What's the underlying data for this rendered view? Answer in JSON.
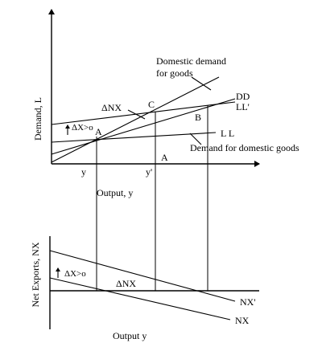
{
  "top": {
    "y_axis_label": "Demand, L",
    "x_axis_label": "Output, y",
    "x_ticks": {
      "y": "y",
      "y_prime": "y'"
    },
    "point_labels": {
      "A_upper": "A",
      "C": "C",
      "B": "B",
      "A_lower": "A"
    },
    "curve_labels": {
      "DD": "DD",
      "LL_prime": "LL'",
      "LL": "L L"
    },
    "annotations": {
      "domestic_demand_line1": "Domestic demand",
      "domestic_demand_line2": "for goods",
      "demand_for_domestic_goods": "Demand for domestic goods",
      "delta_nx": "ΔNX",
      "delta_x": "ΔX>o"
    }
  },
  "bottom": {
    "y_axis_label": "Net Exports, NX",
    "x_axis_label": "Output y",
    "curve_labels": {
      "NX_prime": "NX'",
      "NX": "NX"
    },
    "annotations": {
      "delta_x": "ΔX>o",
      "delta_nx": "ΔNX"
    }
  }
}
